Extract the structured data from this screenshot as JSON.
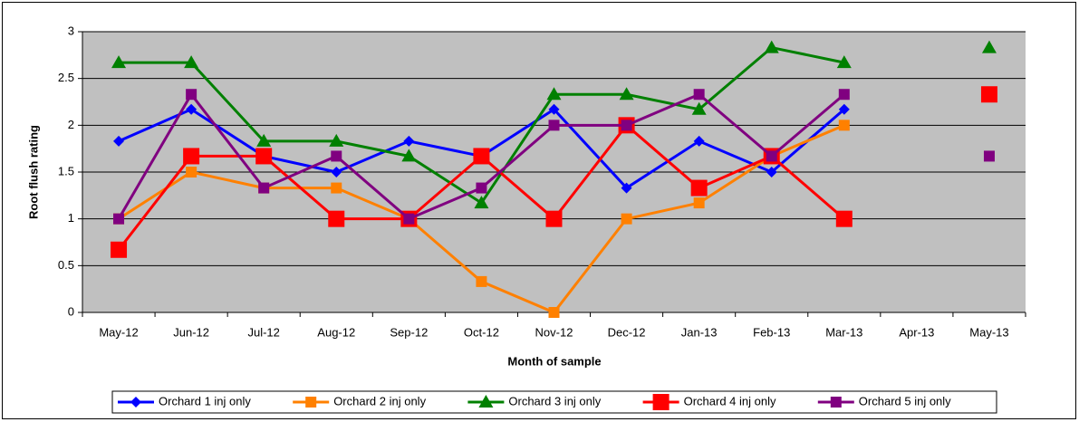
{
  "chart_data": {
    "type": "line",
    "x_label": "Month of sample",
    "y_label": "Root flush rating",
    "categories": [
      "May-12",
      "Jun-12",
      "Jul-12",
      "Aug-12",
      "Sep-12",
      "Oct-12",
      "Nov-12",
      "Dec-12",
      "Jan-13",
      "Feb-13",
      "Mar-13",
      "Apr-13",
      "May-13"
    ],
    "series": [
      {
        "name": "Orchard 1 inj only",
        "color": "#0000ff",
        "marker": "diamond",
        "values": [
          1.83,
          2.17,
          1.67,
          1.5,
          1.83,
          1.67,
          2.17,
          1.33,
          1.83,
          1.5,
          2.17,
          null,
          1.67
        ]
      },
      {
        "name": "Orchard 2 inj only",
        "color": "#ff8000",
        "marker": "square",
        "values": [
          1,
          1.5,
          1.33,
          1.33,
          1,
          0.33,
          0,
          1,
          1.17,
          1.67,
          2,
          null,
          null
        ]
      },
      {
        "name": "Orchard 3 inj only",
        "color": "#008000",
        "marker": "triangle",
        "values": [
          2.67,
          2.67,
          1.83,
          1.83,
          1.67,
          1.17,
          2.33,
          2.33,
          2.17,
          2.83,
          2.67,
          null,
          2.83
        ]
      },
      {
        "name": "Orchard 4 inj only",
        "color": "#ff0000",
        "marker": "big-square",
        "values": [
          0.67,
          1.67,
          1.67,
          1,
          1,
          1.67,
          1,
          2,
          1.33,
          1.67,
          1,
          null,
          2.33
        ]
      },
      {
        "name": "Orchard 5 inj only",
        "color": "#800080",
        "marker": "square",
        "values": [
          1,
          2.33,
          1.33,
          1.67,
          1,
          1.33,
          2,
          2,
          2.33,
          1.67,
          2.33,
          null,
          1.67
        ]
      }
    ],
    "ylim": [
      0,
      3
    ],
    "yticks": [
      0,
      0.5,
      1,
      1.5,
      2,
      2.5,
      3
    ],
    "grid": true,
    "legend": "bottom"
  }
}
